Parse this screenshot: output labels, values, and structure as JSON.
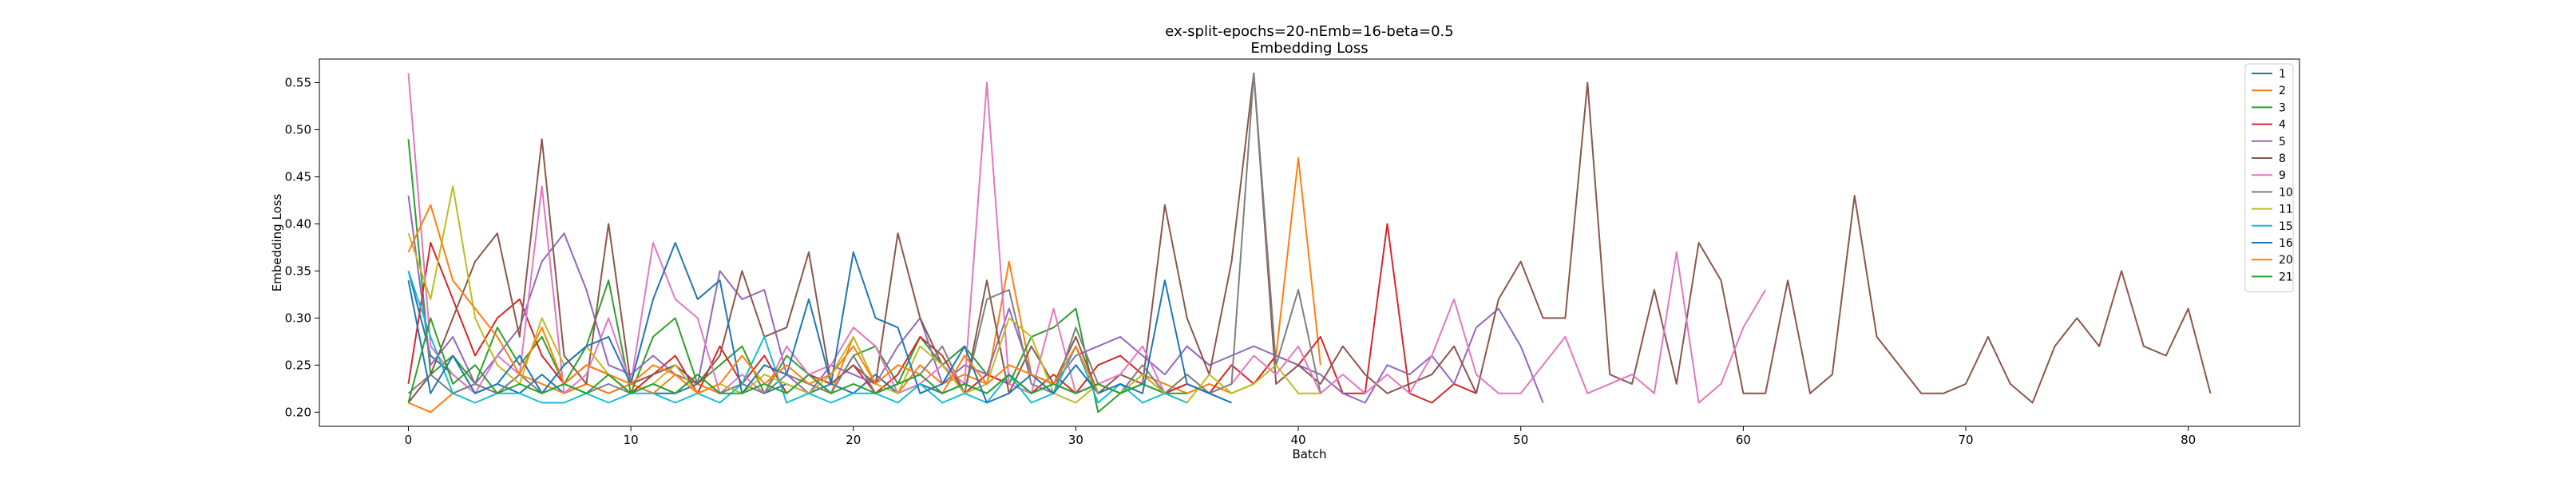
{
  "chart_data": {
    "type": "line",
    "title": "ex-split-epochs=20-nEmb=16-beta=0.5",
    "subtitle": "Embedding Loss",
    "xlabel": "Batch",
    "ylabel": "Embedding Loss",
    "xlim": [
      -4,
      85
    ],
    "ylim": [
      0.185,
      0.575
    ],
    "xticks": [
      0,
      10,
      20,
      30,
      40,
      50,
      60,
      70,
      80
    ],
    "yticks": [
      0.2,
      0.25,
      0.3,
      0.35,
      0.4,
      0.45,
      0.5,
      0.55
    ],
    "grid": false,
    "legend_position": "top-right",
    "series": [
      {
        "name": "1",
        "color": "#1f77b4",
        "x": [
          0,
          1,
          2,
          3,
          4,
          5,
          6,
          7,
          8,
          9,
          10,
          11,
          12,
          13,
          14,
          15,
          16,
          17,
          18,
          19,
          20,
          21,
          22,
          23,
          24,
          25,
          26,
          27,
          28,
          29,
          30,
          31,
          32,
          33,
          34,
          35,
          36,
          37
        ],
        "y": [
          0.35,
          0.26,
          0.24,
          0.22,
          0.23,
          0.22,
          0.24,
          0.22,
          0.23,
          0.22,
          0.23,
          0.22,
          0.22,
          0.23,
          0.22,
          0.23,
          0.22,
          0.23,
          0.22,
          0.23,
          0.22,
          0.24,
          0.22,
          0.23,
          0.22,
          0.23,
          0.22,
          0.24,
          0.22,
          0.23,
          0.22,
          0.23,
          0.22,
          0.23,
          0.22,
          0.23,
          0.22,
          0.21
        ]
      },
      {
        "name": "2",
        "color": "#ff7f0e",
        "x": [
          0,
          1,
          2,
          3,
          4,
          5,
          6,
          7,
          8,
          9,
          10,
          11,
          12,
          13,
          14,
          15,
          16,
          17,
          18,
          19,
          20,
          21,
          22,
          23,
          24,
          25,
          26,
          27,
          28,
          29,
          30,
          31,
          32,
          33,
          34,
          35,
          36,
          37,
          38,
          39,
          40,
          41
        ],
        "y": [
          0.21,
          0.2,
          0.22,
          0.23,
          0.22,
          0.24,
          0.23,
          0.22,
          0.23,
          0.22,
          0.23,
          0.22,
          0.24,
          0.23,
          0.22,
          0.23,
          0.22,
          0.24,
          0.23,
          0.22,
          0.28,
          0.23,
          0.22,
          0.25,
          0.23,
          0.24,
          0.23,
          0.36,
          0.24,
          0.23,
          0.22,
          0.23,
          0.22,
          0.24,
          0.23,
          0.22,
          0.23,
          0.22,
          0.23,
          0.26,
          0.47,
          0.25
        ]
      },
      {
        "name": "3",
        "color": "#2ca02c",
        "x": [
          0,
          1,
          2,
          3,
          4,
          5,
          6,
          7,
          8,
          9,
          10,
          11,
          12,
          13,
          14,
          15,
          16,
          17,
          18,
          19,
          20,
          21,
          22,
          23,
          24,
          25,
          26,
          27,
          28,
          29,
          30,
          31,
          32,
          33,
          34,
          35
        ],
        "y": [
          0.49,
          0.24,
          0.26,
          0.23,
          0.29,
          0.25,
          0.28,
          0.23,
          0.27,
          0.34,
          0.22,
          0.28,
          0.3,
          0.23,
          0.25,
          0.27,
          0.22,
          0.26,
          0.24,
          0.22,
          0.26,
          0.27,
          0.23,
          0.28,
          0.25,
          0.27,
          0.24,
          0.23,
          0.28,
          0.29,
          0.31,
          0.2,
          0.22,
          0.23,
          0.22,
          0.22
        ]
      },
      {
        "name": "4",
        "color": "#d62728",
        "x": [
          0,
          1,
          2,
          3,
          4,
          5,
          6,
          7,
          8,
          9,
          10,
          11,
          12,
          13,
          14,
          15,
          16,
          17,
          18,
          19,
          20,
          21,
          22,
          23,
          24,
          25,
          26,
          27,
          28,
          29,
          30,
          31,
          32,
          33,
          34,
          35,
          36,
          37,
          38,
          39,
          40,
          41,
          42,
          43,
          44,
          45,
          46,
          47,
          48
        ],
        "y": [
          0.23,
          0.38,
          0.32,
          0.26,
          0.3,
          0.32,
          0.26,
          0.23,
          0.25,
          0.24,
          0.22,
          0.24,
          0.26,
          0.22,
          0.27,
          0.23,
          0.26,
          0.22,
          0.24,
          0.23,
          0.25,
          0.22,
          0.24,
          0.28,
          0.26,
          0.22,
          0.24,
          0.23,
          0.22,
          0.24,
          0.22,
          0.25,
          0.26,
          0.24,
          0.22,
          0.23,
          0.22,
          0.25,
          0.23,
          0.26,
          0.25,
          0.28,
          0.22,
          0.22,
          0.4,
          0.22,
          0.21,
          0.23,
          0.22
        ]
      },
      {
        "name": "5",
        "color": "#9467bd",
        "x": [
          0,
          1,
          2,
          3,
          4,
          5,
          6,
          7,
          8,
          9,
          10,
          11,
          12,
          13,
          14,
          15,
          16,
          17,
          18,
          19,
          20,
          21,
          22,
          23,
          24,
          25,
          26,
          27,
          28,
          29,
          30,
          31,
          32,
          33,
          34,
          35,
          36,
          37,
          38,
          39,
          40,
          41,
          42,
          43,
          44,
          45,
          46,
          47,
          48,
          49,
          50,
          51
        ],
        "y": [
          0.43,
          0.25,
          0.28,
          0.23,
          0.26,
          0.29,
          0.36,
          0.39,
          0.33,
          0.25,
          0.24,
          0.26,
          0.24,
          0.23,
          0.35,
          0.32,
          0.33,
          0.24,
          0.22,
          0.25,
          0.24,
          0.23,
          0.27,
          0.3,
          0.23,
          0.25,
          0.24,
          0.31,
          0.24,
          0.23,
          0.26,
          0.27,
          0.28,
          0.26,
          0.24,
          0.27,
          0.25,
          0.26,
          0.27,
          0.26,
          0.25,
          0.24,
          0.22,
          0.21,
          0.25,
          0.24,
          0.26,
          0.23,
          0.29,
          0.31,
          0.27,
          0.21
        ]
      },
      {
        "name": "8",
        "color": "#8c564b",
        "x": [
          0,
          1,
          2,
          3,
          4,
          5,
          6,
          7,
          8,
          9,
          10,
          11,
          12,
          13,
          14,
          15,
          16,
          17,
          18,
          19,
          20,
          21,
          22,
          23,
          24,
          25,
          26,
          27,
          28,
          29,
          30,
          31,
          32,
          33,
          34,
          35,
          36,
          37,
          38,
          39,
          40,
          41,
          42,
          43,
          44,
          45,
          46,
          47,
          48,
          49,
          50,
          51,
          52,
          53,
          54,
          55,
          56,
          57,
          58,
          59,
          60,
          61,
          62,
          63,
          64,
          65,
          66,
          67,
          68,
          69,
          70,
          71,
          72,
          73,
          74,
          75,
          76,
          77,
          78,
          79,
          80,
          81
        ],
        "y": [
          0.21,
          0.24,
          0.3,
          0.36,
          0.39,
          0.28,
          0.49,
          0.26,
          0.23,
          0.4,
          0.23,
          0.24,
          0.25,
          0.23,
          0.26,
          0.35,
          0.28,
          0.29,
          0.37,
          0.23,
          0.25,
          0.23,
          0.39,
          0.3,
          0.25,
          0.22,
          0.34,
          0.22,
          0.27,
          0.23,
          0.28,
          0.22,
          0.24,
          0.23,
          0.42,
          0.3,
          0.24,
          0.36,
          0.56,
          0.23,
          0.25,
          0.23,
          0.27,
          0.24,
          0.22,
          0.23,
          0.24,
          0.27,
          0.22,
          0.32,
          0.36,
          0.3,
          0.3,
          0.55,
          0.24,
          0.23,
          0.33,
          0.23,
          0.38,
          0.34,
          0.22,
          0.22,
          0.34,
          0.22,
          0.24,
          0.43,
          0.28,
          0.25,
          0.22,
          0.22,
          0.23,
          0.28,
          0.23,
          0.21,
          0.27,
          0.3,
          0.27,
          0.35,
          0.27,
          0.26,
          0.31,
          0.22
        ]
      },
      {
        "name": "9",
        "color": "#e377c2",
        "x": [
          0,
          1,
          2,
          3,
          4,
          5,
          6,
          7,
          8,
          9,
          10,
          11,
          12,
          13,
          14,
          15,
          16,
          17,
          18,
          19,
          20,
          21,
          22,
          23,
          24,
          25,
          26,
          27,
          28,
          29,
          30,
          31,
          32,
          33,
          34,
          35,
          36,
          37,
          38,
          39,
          40,
          41,
          42,
          43,
          44,
          45,
          46,
          47,
          48,
          49,
          50,
          51,
          52,
          53,
          54,
          55,
          56,
          57,
          58,
          59,
          60,
          61
        ],
        "y": [
          0.56,
          0.27,
          0.24,
          0.22,
          0.26,
          0.24,
          0.44,
          0.22,
          0.24,
          0.3,
          0.23,
          0.38,
          0.32,
          0.3,
          0.22,
          0.24,
          0.22,
          0.27,
          0.24,
          0.25,
          0.29,
          0.27,
          0.22,
          0.23,
          0.25,
          0.23,
          0.55,
          0.23,
          0.22,
          0.31,
          0.22,
          0.23,
          0.24,
          0.27,
          0.22,
          0.24,
          0.22,
          0.23,
          0.26,
          0.24,
          0.27,
          0.22,
          0.24,
          0.22,
          0.24,
          0.22,
          0.26,
          0.32,
          0.24,
          0.22,
          0.22,
          0.25,
          0.28,
          0.22,
          0.23,
          0.24,
          0.22,
          0.37,
          0.21,
          0.23,
          0.29,
          0.33
        ]
      },
      {
        "name": "10",
        "color": "#7f7f7f",
        "x": [
          0,
          1,
          2,
          3,
          4,
          5,
          6,
          7,
          8,
          9,
          10,
          11,
          12,
          13,
          14,
          15,
          16,
          17,
          18,
          19,
          20,
          21,
          22,
          23,
          24,
          25,
          26,
          27,
          28,
          29,
          30,
          31,
          32,
          33,
          34,
          35,
          36,
          37,
          38,
          39,
          40,
          41
        ],
        "y": [
          0.22,
          0.24,
          0.22,
          0.23,
          0.22,
          0.24,
          0.22,
          0.23,
          0.22,
          0.23,
          0.22,
          0.23,
          0.22,
          0.24,
          0.22,
          0.23,
          0.22,
          0.24,
          0.23,
          0.22,
          0.26,
          0.22,
          0.23,
          0.24,
          0.27,
          0.22,
          0.32,
          0.33,
          0.23,
          0.22,
          0.29,
          0.23,
          0.22,
          0.25,
          0.22,
          0.24,
          0.22,
          0.23,
          0.56,
          0.25,
          0.33,
          0.22
        ]
      },
      {
        "name": "11",
        "color": "#bcbd22",
        "x": [
          0,
          1,
          2,
          3,
          4,
          5,
          6,
          7,
          8,
          9,
          10,
          11,
          12,
          13,
          14,
          15,
          16,
          17,
          18,
          19,
          20,
          21,
          22,
          23,
          24,
          25,
          26,
          27,
          28,
          29,
          30,
          31,
          32,
          33,
          34,
          35,
          36,
          37,
          38,
          39,
          40,
          41
        ],
        "y": [
          0.39,
          0.32,
          0.44,
          0.3,
          0.25,
          0.23,
          0.3,
          0.25,
          0.27,
          0.24,
          0.22,
          0.23,
          0.25,
          0.22,
          0.23,
          0.22,
          0.24,
          0.23,
          0.22,
          0.24,
          0.28,
          0.23,
          0.22,
          0.27,
          0.25,
          0.22,
          0.23,
          0.3,
          0.28,
          0.22,
          0.21,
          0.23,
          0.22,
          0.24,
          0.22,
          0.21,
          0.24,
          0.22,
          0.23,
          0.25,
          0.22,
          0.22
        ]
      },
      {
        "name": "15",
        "color": "#17becf",
        "x": [
          0,
          1,
          2,
          3,
          4,
          5,
          6,
          7,
          8,
          9,
          10,
          11,
          12,
          13,
          14,
          15,
          16,
          17,
          18,
          19,
          20,
          21,
          22,
          23,
          24,
          25,
          26,
          27,
          28,
          29,
          30,
          31,
          32,
          33,
          34,
          35
        ],
        "y": [
          0.35,
          0.28,
          0.22,
          0.21,
          0.22,
          0.22,
          0.21,
          0.21,
          0.22,
          0.21,
          0.22,
          0.22,
          0.21,
          0.22,
          0.21,
          0.23,
          0.28,
          0.21,
          0.22,
          0.21,
          0.22,
          0.22,
          0.21,
          0.23,
          0.21,
          0.22,
          0.21,
          0.24,
          0.21,
          0.22,
          0.27,
          0.21,
          0.23,
          0.21,
          0.22,
          0.21
        ]
      },
      {
        "name": "16",
        "color": "#1f77b4",
        "x": [
          0,
          1,
          2,
          3,
          4,
          5,
          6,
          7,
          8,
          9,
          10,
          11,
          12,
          13,
          14,
          15,
          16,
          17,
          18,
          19,
          20,
          21,
          22,
          23,
          24,
          25,
          26,
          27,
          28,
          29,
          30,
          31,
          32,
          33,
          34,
          35,
          36,
          37
        ],
        "y": [
          0.34,
          0.22,
          0.26,
          0.22,
          0.23,
          0.26,
          0.22,
          0.25,
          0.27,
          0.28,
          0.23,
          0.32,
          0.38,
          0.32,
          0.34,
          0.22,
          0.25,
          0.24,
          0.32,
          0.23,
          0.37,
          0.3,
          0.29,
          0.22,
          0.23,
          0.27,
          0.21,
          0.22,
          0.24,
          0.22,
          0.25,
          0.22,
          0.23,
          0.22,
          0.34,
          0.23,
          0.22,
          0.21
        ]
      },
      {
        "name": "20",
        "color": "#ff7f0e",
        "x": [
          0,
          1,
          2,
          3,
          4,
          5,
          6,
          7,
          8,
          9,
          10,
          11,
          12,
          13,
          14,
          15,
          16,
          17,
          18,
          19,
          20,
          21,
          22,
          23,
          24,
          25,
          26,
          27,
          28,
          29,
          30,
          31
        ],
        "y": [
          0.37,
          0.42,
          0.34,
          0.31,
          0.28,
          0.24,
          0.29,
          0.23,
          0.25,
          0.24,
          0.23,
          0.25,
          0.24,
          0.22,
          0.23,
          0.26,
          0.23,
          0.25,
          0.23,
          0.24,
          0.27,
          0.23,
          0.25,
          0.24,
          0.22,
          0.26,
          0.23,
          0.25,
          0.24,
          0.23,
          0.27,
          0.22
        ]
      },
      {
        "name": "21",
        "color": "#2ca02c",
        "x": [
          0,
          1,
          2,
          3,
          4,
          5,
          6,
          7,
          8,
          9,
          10,
          11,
          12,
          13,
          14,
          15,
          16,
          17,
          18,
          19,
          20,
          21,
          22,
          23,
          24,
          25,
          26,
          27,
          28,
          29,
          30,
          31,
          32,
          33
        ],
        "y": [
          0.21,
          0.3,
          0.23,
          0.25,
          0.22,
          0.23,
          0.22,
          0.23,
          0.22,
          0.24,
          0.22,
          0.23,
          0.22,
          0.24,
          0.22,
          0.22,
          0.23,
          0.22,
          0.24,
          0.22,
          0.23,
          0.22,
          0.23,
          0.24,
          0.22,
          0.23,
          0.22,
          0.24,
          0.22,
          0.23,
          0.22,
          0.23,
          0.22,
          0.23
        ]
      }
    ]
  }
}
